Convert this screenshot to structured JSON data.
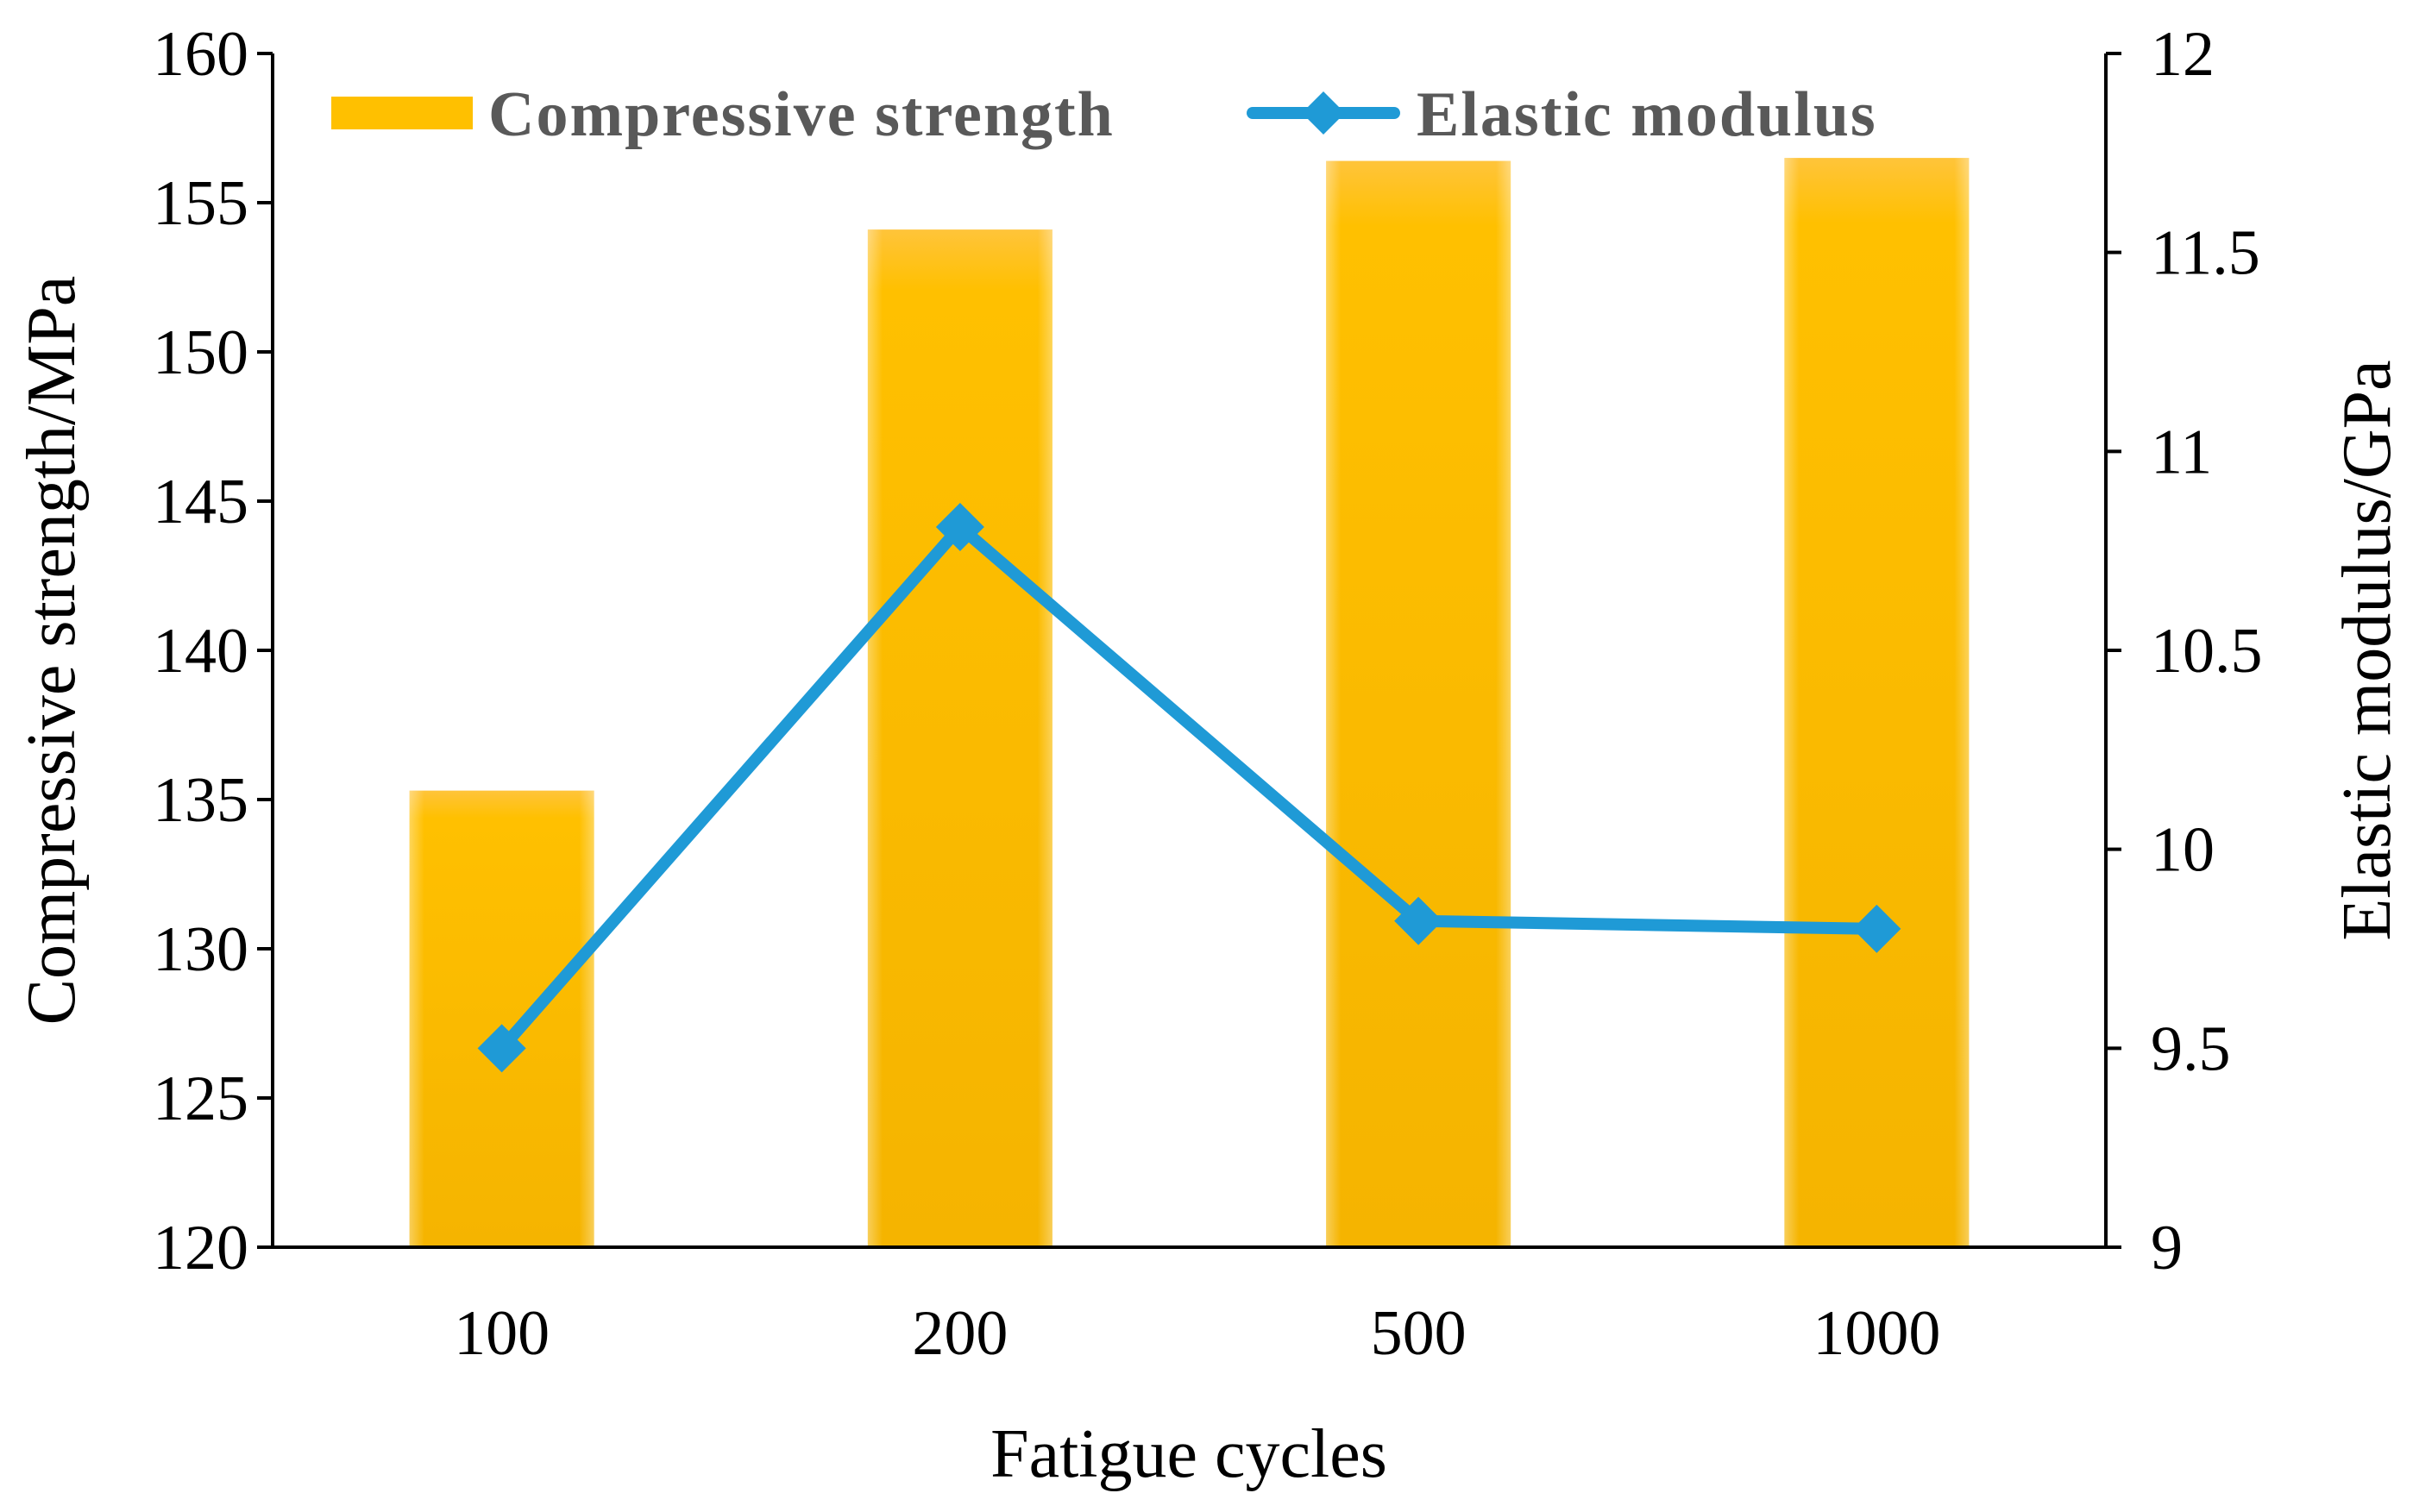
{
  "chart_data": {
    "type": "bar",
    "categories": [
      "100",
      "200",
      "500",
      "1000"
    ],
    "xlabel": "Fatigue cycles",
    "series": [
      {
        "name": "Compressive strength",
        "kind": "bar",
        "axis": "left",
        "values": [
          135.3,
          154.1,
          156.4,
          156.5
        ],
        "color": "#FFC000"
      },
      {
        "name": "Elastic modulus",
        "kind": "line",
        "axis": "right",
        "values": [
          9.5,
          10.81,
          9.82,
          9.8
        ],
        "color": "#1F9AD6",
        "marker": "diamond"
      }
    ],
    "y_left": {
      "label": "Compressive strength/MPa",
      "min": 120,
      "max": 160,
      "ticks": [
        "120",
        "125",
        "130",
        "135",
        "140",
        "145",
        "150",
        "155",
        "160"
      ]
    },
    "y_right": {
      "label": "Elastic modulus/GPa",
      "min": 9,
      "max": 12,
      "ticks": [
        "9",
        "9.5",
        "10",
        "10.5",
        "11",
        "11.5",
        "12"
      ]
    },
    "legend": {
      "placement": "top",
      "entries": [
        "Compressive strength",
        "Elastic modulus"
      ]
    },
    "grid": false
  }
}
